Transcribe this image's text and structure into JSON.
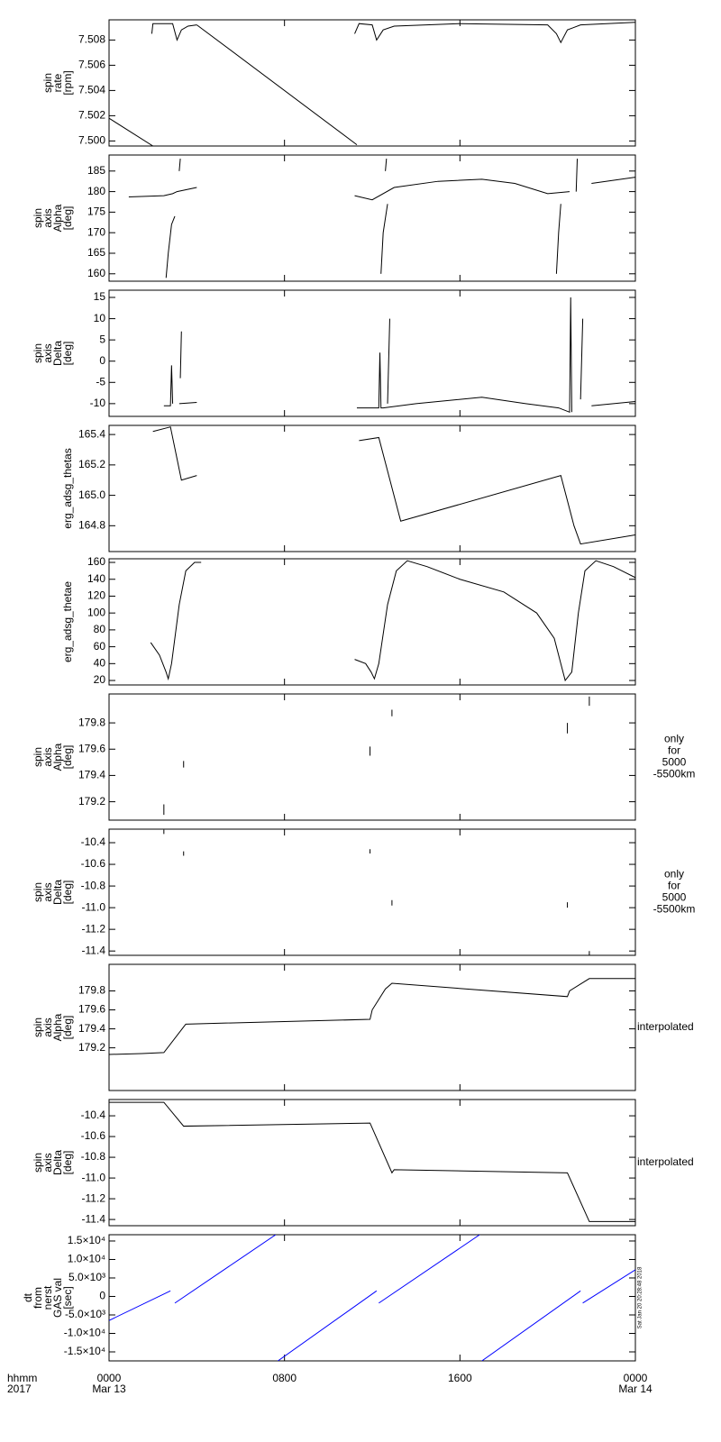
{
  "chart_data": [
    {
      "type": "line",
      "ylabel": [
        "spin",
        "rate",
        "[rpm]"
      ],
      "xlim": [
        0,
        24
      ],
      "xticks": [
        0,
        8,
        16,
        24
      ],
      "ylim": [
        7.4996,
        7.5096
      ],
      "yticks": [
        {
          "value": 7.5,
          "label": "7.500"
        },
        7.502,
        7.504,
        7.506,
        7.508
      ],
      "series": [
        {
          "color": "#000000",
          "x": [
            0,
            2.0,
            null,
            4.0,
            11.3
          ],
          "values": [
            7.5018,
            7.4996,
            null,
            7.5092,
            7.4997
          ]
        },
        {
          "color": "#000000",
          "x": [
            1.95,
            2.0,
            2.9,
            3.1,
            3.3,
            3.6,
            4.0,
            null,
            11.2,
            11.4,
            12.0,
            12.2,
            12.5,
            13.0,
            16.0,
            20.0,
            20.4,
            20.6,
            20.9,
            21.5,
            24.0
          ],
          "values": [
            7.5085,
            7.5093,
            7.5093,
            7.508,
            7.5088,
            7.5091,
            7.5092,
            null,
            7.5085,
            7.5093,
            7.5092,
            7.508,
            7.5088,
            7.5091,
            7.5093,
            7.5092,
            7.5085,
            7.5078,
            7.5088,
            7.5092,
            7.5094
          ]
        }
      ]
    },
    {
      "type": "line",
      "ylabel": [
        "spin",
        "axis",
        "Alpha",
        "[deg]"
      ],
      "xlim": [
        0,
        24
      ],
      "xticks": [
        0,
        8,
        16,
        24
      ],
      "ylim": [
        158.2,
        188.9
      ],
      "yticks": [
        160,
        165,
        170,
        175,
        180,
        185
      ],
      "series": [
        {
          "color": "#000000",
          "x": [
            0.9,
            2.5,
            2.9,
            3.1,
            4.0,
            null,
            2.6,
            2.7,
            2.85,
            3.0,
            null,
            3.2,
            3.25,
            null,
            11.2,
            12.0,
            13.0,
            15.0,
            17.0,
            18.5,
            20.0,
            21.0,
            null,
            12.4,
            12.5,
            12.7,
            null,
            12.6,
            12.65,
            null,
            20.4,
            20.5,
            20.6,
            null,
            21.3,
            21.35,
            null,
            22.0,
            24.0
          ],
          "values": [
            178.7,
            179.0,
            179.5,
            180.0,
            181.0,
            null,
            159.0,
            165.0,
            172.0,
            174.0,
            null,
            185.0,
            188.0,
            null,
            179.0,
            178.0,
            181.0,
            182.5,
            183.0,
            182.0,
            179.5,
            180.0,
            null,
            160.0,
            170.0,
            177.0,
            null,
            185.0,
            188.0,
            null,
            160.0,
            170.0,
            177.0,
            null,
            180.0,
            188.0,
            null,
            182.0,
            183.5
          ]
        }
      ]
    },
    {
      "type": "line",
      "ylabel": [
        "spin",
        "axis",
        "Delta",
        "[deg]"
      ],
      "xlim": [
        0,
        24
      ],
      "xticks": [
        0,
        8,
        16,
        24
      ],
      "ylim": [
        -13.0,
        16.7
      ],
      "yticks": [
        -10,
        -5,
        0,
        5,
        10,
        15
      ],
      "series": [
        {
          "color": "#000000",
          "x": [
            2.5,
            2.8,
            2.85,
            2.9,
            null,
            3.2,
            4.0,
            null,
            3.25,
            3.3,
            null,
            11.3,
            12.3,
            12.35,
            12.4,
            12.5,
            14.0,
            17.0,
            19.0,
            20.5,
            21.0,
            21.05,
            21.1,
            null,
            12.7,
            12.8,
            null,
            21.5,
            21.6,
            null,
            22.0,
            24.0
          ],
          "values": [
            -10.5,
            -10.5,
            -1.0,
            -10.0,
            null,
            -10.0,
            -9.7,
            null,
            -4.0,
            7.0,
            null,
            -11.0,
            -11.0,
            2.0,
            -11.0,
            -11.0,
            -10.0,
            -8.5,
            -10.0,
            -11.0,
            -12.0,
            15.0,
            -12.0,
            null,
            -10.0,
            10.0,
            null,
            -9.0,
            10.0,
            null,
            -10.5,
            -9.5
          ]
        }
      ]
    },
    {
      "type": "line",
      "ylabel": [
        "erg_adsg_thetas"
      ],
      "xlim": [
        0,
        24
      ],
      "xticks": [
        0,
        8,
        16,
        24
      ],
      "ylim": [
        164.63,
        165.46
      ],
      "yticks": [
        164.8,
        {
          "value": 165.0,
          "label": "165.0"
        },
        165.2,
        165.4
      ],
      "series": [
        {
          "color": "#000000",
          "x": [
            2.0,
            2.8,
            3.3,
            4.0,
            null,
            11.4,
            12.3,
            13.3,
            20.6,
            21.2,
            21.5,
            24.0
          ],
          "values": [
            165.42,
            165.45,
            165.1,
            165.13,
            null,
            165.36,
            165.38,
            164.83,
            165.13,
            164.8,
            164.68,
            164.74
          ]
        }
      ]
    },
    {
      "type": "line",
      "ylabel": [
        "erg_adsg_thetae"
      ],
      "xlim": [
        0,
        24
      ],
      "xticks": [
        0,
        8,
        16,
        24
      ],
      "ylim": [
        14.7,
        164.3
      ],
      "yticks": [
        20,
        40,
        60,
        80,
        100,
        120,
        140,
        160
      ],
      "series": [
        {
          "color": "#000000",
          "x": [
            1.9,
            2.3,
            2.6,
            2.7,
            2.85,
            3.2,
            3.5,
            3.9,
            4.2,
            null,
            11.2,
            11.7,
            11.95,
            12.1,
            12.3,
            12.7,
            13.1,
            13.6,
            14.5,
            16.0,
            18.0,
            19.5,
            20.3,
            20.6,
            20.8,
            21.1,
            21.4,
            21.7,
            22.2,
            23.0,
            24.0
          ],
          "values": [
            65,
            50,
            30,
            22,
            40,
            110,
            150,
            160,
            160,
            null,
            45,
            40,
            30,
            22,
            40,
            110,
            150,
            162,
            155,
            140,
            125,
            100,
            70,
            40,
            20,
            30,
            100,
            150,
            162,
            155,
            142
          ]
        }
      ]
    },
    {
      "type": "line",
      "ylabel": [
        "spin",
        "axis",
        "Alpha",
        "[deg]"
      ],
      "note": [
        "only",
        "for",
        "5000",
        "-5500km"
      ],
      "xlim": [
        0,
        24
      ],
      "xticks": [
        0,
        8,
        16,
        24
      ],
      "ylim": [
        179.06,
        180.02
      ],
      "yticks": [
        179.2,
        179.4,
        179.6,
        179.8
      ],
      "series": [
        {
          "color": "#000000",
          "x": [
            2.5,
            2.5,
            null,
            3.4,
            3.4,
            null,
            11.9,
            11.9,
            null,
            12.9,
            12.9,
            null,
            20.9,
            20.9,
            null,
            21.9,
            21.9
          ],
          "values": [
            179.1,
            179.18,
            null,
            179.46,
            179.51,
            null,
            179.55,
            179.62,
            null,
            179.85,
            179.9,
            null,
            179.72,
            179.8,
            null,
            179.93,
            180.0
          ]
        }
      ]
    },
    {
      "type": "line",
      "ylabel": [
        "spin",
        "axis",
        "Delta",
        "[deg]"
      ],
      "note": [
        "only",
        "for",
        "5000",
        "-5500km"
      ],
      "xlim": [
        0,
        24
      ],
      "xticks": [
        0,
        8,
        16,
        24
      ],
      "ylim": [
        -11.44,
        -10.275
      ],
      "yticks": [
        -11.4,
        -11.2,
        {
          "value": -11.0,
          "label": "-11.0"
        },
        -10.8,
        -10.6,
        -10.4
      ],
      "series": [
        {
          "color": "#000000",
          "x": [
            2.5,
            2.5,
            null,
            3.4,
            3.4,
            null,
            11.9,
            11.9,
            null,
            12.9,
            12.9,
            null,
            20.9,
            20.9,
            null,
            21.9,
            21.9
          ],
          "values": [
            -10.28,
            -10.32,
            null,
            -10.48,
            -10.52,
            null,
            -10.46,
            -10.5,
            null,
            -10.93,
            -10.98,
            null,
            -10.95,
            -11.0,
            null,
            -11.4,
            -11.44
          ]
        }
      ]
    },
    {
      "type": "line",
      "ylabel": [
        "spin",
        "axis",
        "Alpha",
        "[deg]"
      ],
      "note": [
        "interpolated"
      ],
      "xlim": [
        0,
        24
      ],
      "xticks": [
        0,
        8,
        16,
        24
      ],
      "ylim": [
        178.75,
        180.08
      ],
      "yticks": [
        179.2,
        179.4,
        179.6,
        179.8
      ],
      "series": [
        {
          "color": "#000000",
          "x": [
            0,
            1.5,
            2.5,
            3.4,
            3.5,
            11.9,
            12.0,
            12.6,
            12.9,
            20.9,
            21.0,
            21.9,
            24.0
          ],
          "values": [
            179.13,
            179.14,
            179.15,
            179.42,
            179.45,
            179.5,
            179.6,
            179.82,
            179.88,
            179.74,
            179.8,
            179.93,
            179.93
          ]
        }
      ]
    },
    {
      "type": "line",
      "ylabel": [
        "spin",
        "axis",
        "Delta",
        "[deg]"
      ],
      "note": [
        "interpolated"
      ],
      "xlim": [
        0,
        24
      ],
      "xticks": [
        0,
        8,
        16,
        24
      ],
      "ylim": [
        -11.46,
        -10.243
      ],
      "yticks": [
        -11.4,
        -11.2,
        {
          "value": -11.0,
          "label": "-11.0"
        },
        -10.8,
        -10.6,
        -10.4
      ],
      "series": [
        {
          "color": "#000000",
          "x": [
            0,
            2.5,
            3.4,
            11.9,
            12.9,
            13.0,
            20.9,
            21.9,
            24.0
          ],
          "values": [
            -10.27,
            -10.27,
            -10.5,
            -10.47,
            -10.95,
            -10.92,
            -10.95,
            -11.42,
            -11.42
          ]
        }
      ]
    },
    {
      "type": "line",
      "ylabel": [
        "dt",
        "from",
        "nerst",
        "GAS val",
        "[sec]"
      ],
      "timestamp": "Sat Jan 20 20:28:48 2018",
      "xlim": [
        0,
        24
      ],
      "xticks": [
        {
          "value": 0,
          "label": [
            "0000",
            "Mar 13"
          ]
        },
        {
          "value": 8,
          "label": [
            "0800"
          ]
        },
        {
          "value": 16,
          "label": [
            "1600"
          ]
        },
        {
          "value": 24,
          "label": [
            "0000",
            "Mar 14"
          ]
        }
      ],
      "xlabel": [
        "hhmm",
        "2017"
      ],
      "ylim": [
        -17440,
        16700
      ],
      "yticks": [
        {
          "value": -15000,
          "label": "-1.5×10⁴"
        },
        {
          "value": -10000,
          "label": "-1.0×10⁴"
        },
        {
          "value": -5000,
          "label": "-5.0×10³"
        },
        0,
        {
          "value": 5000,
          "label": "5.0×10³"
        },
        {
          "value": 10000,
          "label": "1.0×10⁴"
        },
        {
          "value": 15000,
          "label": "1.5×10⁴"
        }
      ],
      "series": [
        {
          "color": "#0000ff",
          "x": [
            0,
            2.8,
            null,
            3.0,
            7.6,
            null,
            7.7,
            12.2,
            null,
            12.3,
            16.9,
            null,
            17.0,
            21.5,
            null,
            21.6,
            24.0
          ],
          "values": [
            -6500,
            1500,
            null,
            -1800,
            16700,
            null,
            -17440,
            1500,
            null,
            -1800,
            16700,
            null,
            -17440,
            1500,
            null,
            -1800,
            7200
          ]
        }
      ]
    }
  ]
}
